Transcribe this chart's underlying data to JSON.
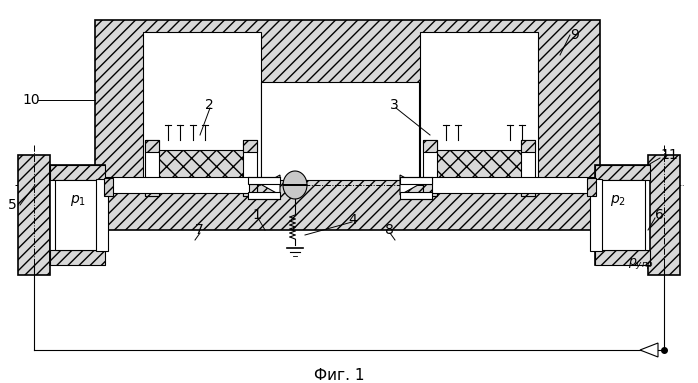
{
  "bg_color": "#ffffff",
  "line_color": "#000000",
  "title": "Фиг. 1",
  "title_fontsize": 11,
  "fig_width": 6.98,
  "fig_height": 3.83,
  "lw": 0.8,
  "lw2": 1.2
}
